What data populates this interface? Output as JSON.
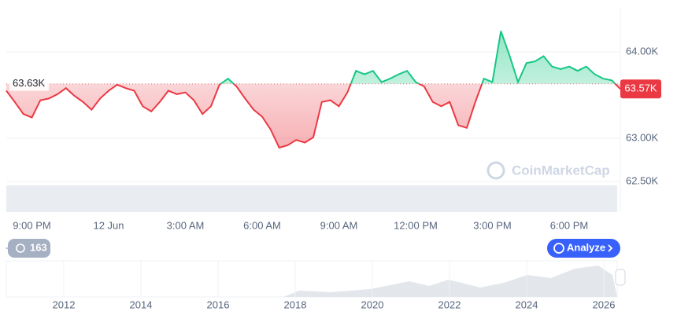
{
  "chart_data": {
    "type": "line",
    "categories": [
      null,
      null,
      null,
      "9:00 PM",
      null,
      null,
      null,
      null,
      null,
      null,
      null,
      null,
      "12 Jun",
      null,
      null,
      null,
      null,
      null,
      null,
      null,
      null,
      "3:00 AM",
      null,
      null,
      null,
      null,
      null,
      null,
      null,
      null,
      "6:00 AM",
      null,
      null,
      null,
      null,
      null,
      null,
      null,
      null,
      "9:00 AM",
      null,
      null,
      null,
      null,
      null,
      null,
      null,
      null,
      "12:00 PM",
      null,
      null,
      null,
      null,
      null,
      null,
      null,
      null,
      "3:00 PM",
      null,
      null,
      null,
      null,
      null,
      null,
      null,
      null,
      "6:00 PM",
      null,
      null,
      null,
      null,
      null,
      null
    ],
    "values": [
      63550,
      63420,
      63280,
      63240,
      63440,
      63460,
      63510,
      63580,
      63490,
      63420,
      63330,
      63460,
      63550,
      63620,
      63580,
      63550,
      63370,
      63310,
      63420,
      63550,
      63510,
      63530,
      63440,
      63280,
      63370,
      63620,
      63690,
      63600,
      63460,
      63330,
      63250,
      63100,
      62890,
      62920,
      62980,
      62950,
      63010,
      63420,
      63440,
      63370,
      63530,
      63780,
      63740,
      63780,
      63650,
      63690,
      63740,
      63780,
      63650,
      63600,
      63420,
      63370,
      63420,
      63150,
      63120,
      63420,
      63690,
      63650,
      64240,
      63960,
      63650,
      63870,
      63890,
      63950,
      63830,
      63800,
      63830,
      63780,
      63830,
      63740,
      63690,
      63670,
      63570
    ],
    "colors": {
      "up": "#16c784",
      "down": "#ea3943"
    },
    "ylim": [
      62500,
      64500
    ],
    "yticks": [
      {
        "value": 62500,
        "label": "62.50K"
      },
      {
        "value": 63000,
        "label": "63.00K"
      },
      {
        "value": 64000,
        "label": "64.00K"
      }
    ],
    "grid": true,
    "reference_line": {
      "value": 63630,
      "label": "63.63K"
    },
    "last_price": {
      "value": 63570,
      "label": "63.57K"
    }
  },
  "navigator": {
    "labels": [
      "2012",
      "2014",
      "2016",
      "2018",
      "2020",
      "2022",
      "2024",
      "2026"
    ]
  },
  "ui": {
    "history_count": 163,
    "analyze": "Analyze",
    "watermark": "CoinMarketCap"
  }
}
